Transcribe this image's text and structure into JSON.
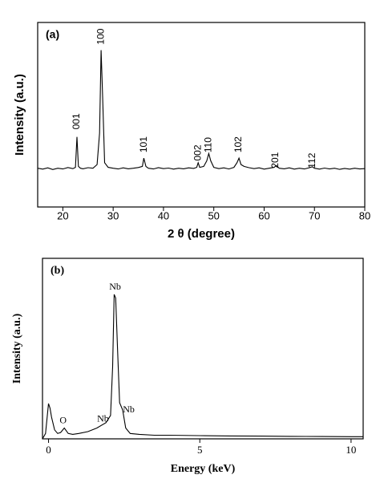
{
  "chart_data": [
    {
      "type": "line",
      "panel_label": "(a)",
      "xlabel": "2 θ (degree)",
      "ylabel": "Intensity (a.u.)",
      "color": "#000000",
      "xlim": [
        15,
        80
      ],
      "xticks": [
        20,
        30,
        40,
        50,
        60,
        70,
        80
      ],
      "ylim": [
        0,
        100
      ],
      "x": [
        15,
        16,
        17,
        18,
        19,
        20,
        21,
        22,
        22.5,
        22.8,
        23.1,
        23.5,
        24,
        25,
        26,
        26.8,
        27.3,
        27.6,
        27.9,
        28.3,
        29,
        30,
        31,
        32,
        33,
        34,
        35,
        35.8,
        36.1,
        36.5,
        37,
        38,
        39,
        40,
        41,
        42,
        43,
        44,
        45,
        46,
        46.6,
        46.9,
        47.2,
        48,
        48.6,
        49,
        49.4,
        50,
        51,
        52,
        53,
        54,
        54.6,
        55,
        55.4,
        56,
        57,
        58,
        59,
        60,
        61,
        62,
        62.4,
        63,
        64,
        65,
        66,
        67,
        68,
        69,
        69.6,
        70,
        71,
        72,
        73,
        74,
        75,
        76,
        77,
        78,
        79,
        80
      ],
      "values": [
        21,
        20.5,
        21.2,
        20.3,
        21,
        20.6,
        21.4,
        20.8,
        21.5,
        38,
        22,
        21,
        20.7,
        21.3,
        21,
        23,
        40,
        85,
        60,
        24,
        21.5,
        21,
        20.6,
        21.2,
        20.7,
        21,
        21.4,
        22,
        26.5,
        22,
        21,
        20.6,
        21.3,
        20.8,
        21.1,
        20.5,
        21,
        20.7,
        21.2,
        20.9,
        21.5,
        24,
        21.5,
        22,
        25,
        29,
        25,
        21.5,
        20.8,
        21.2,
        20.6,
        21.5,
        24,
        26.5,
        23,
        22,
        21.3,
        20.8,
        21.2,
        20.5,
        21,
        21.5,
        22.5,
        21,
        20.7,
        21.2,
        20.5,
        21,
        20.6,
        21.3,
        21.8,
        21,
        20.5,
        21.1,
        20.6,
        21,
        20.4,
        20.9,
        20.5,
        21,
        20.6,
        20.8
      ],
      "annotations": [
        {
          "text": "001",
          "x": 22.8,
          "y": 42
        },
        {
          "text": "100",
          "x": 27.6,
          "y": 88
        },
        {
          "text": "101",
          "x": 36.2,
          "y": 29.5
        },
        {
          "text": "002",
          "x": 46.9,
          "y": 25
        },
        {
          "text": "110",
          "x": 49,
          "y": 29.5
        },
        {
          "text": "102",
          "x": 55,
          "y": 29.5
        },
        {
          "text": "201",
          "x": 62.3,
          "y": 21
        },
        {
          "text": "112",
          "x": 69.6,
          "y": 21
        }
      ]
    },
    {
      "type": "line",
      "panel_label": "(b)",
      "xlabel": "Energy (keV)",
      "ylabel": "Intensity (a.u.)",
      "color": "#000000",
      "xlim": [
        -0.2,
        10.4
      ],
      "xticks": [
        0,
        5,
        10
      ],
      "ylim": [
        0,
        100
      ],
      "x": [
        -0.2,
        -0.1,
        0,
        0.05,
        0.1,
        0.2,
        0.3,
        0.4,
        0.52,
        0.65,
        0.8,
        1,
        1.3,
        1.6,
        1.9,
        2.05,
        2.12,
        2.17,
        2.22,
        2.28,
        2.35,
        2.45,
        2.55,
        2.7,
        3,
        3.5,
        4,
        5,
        6,
        7,
        8,
        9,
        10,
        10.4
      ],
      "values": [
        0,
        3,
        19.5,
        17,
        12,
        5,
        3,
        3.5,
        6,
        3,
        2.5,
        3,
        4,
        6,
        9,
        13,
        40,
        80,
        78,
        50,
        20,
        16,
        6,
        3,
        2.5,
        2,
        2,
        1.8,
        1.6,
        1.5,
        1.4,
        1.3,
        1.2,
        1.2
      ],
      "annotations": [
        {
          "text": "O",
          "x": 0.48,
          "y": 10
        },
        {
          "text": "Nb",
          "x": 1.8,
          "y": 10.7
        },
        {
          "text": "Nb",
          "x": 2.2,
          "y": 84
        },
        {
          "text": "Nb",
          "x": 2.65,
          "y": 16
        }
      ]
    }
  ]
}
